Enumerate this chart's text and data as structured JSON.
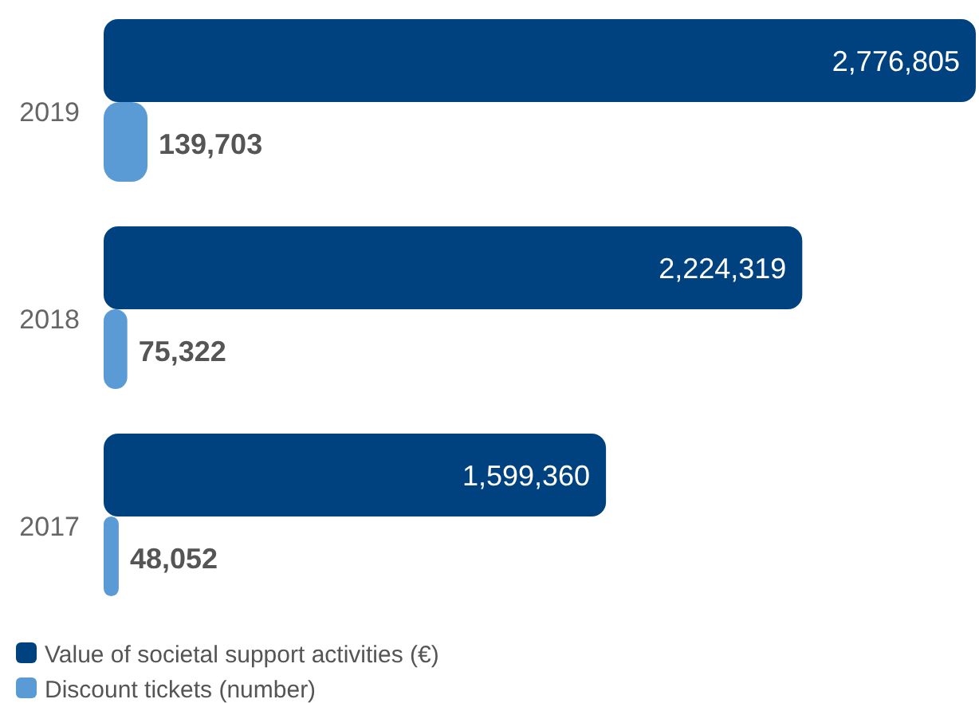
{
  "chart_data": {
    "type": "bar",
    "orientation": "horizontal",
    "categories": [
      "2019",
      "2018",
      "2017"
    ],
    "series": [
      {
        "name": "Value of societal support activities (€)",
        "color": "#00427f",
        "values": [
          2776805,
          2224319,
          1599360
        ],
        "value_labels": [
          "2,776,805",
          "2,224,319",
          "1,599,360"
        ]
      },
      {
        "name": "Discount tickets (number)",
        "color": "#5b9bd5",
        "values": [
          139703,
          75322,
          48052
        ],
        "value_labels": [
          "139,703",
          "75,322",
          "48,052"
        ]
      }
    ],
    "legend": "bottom left"
  }
}
